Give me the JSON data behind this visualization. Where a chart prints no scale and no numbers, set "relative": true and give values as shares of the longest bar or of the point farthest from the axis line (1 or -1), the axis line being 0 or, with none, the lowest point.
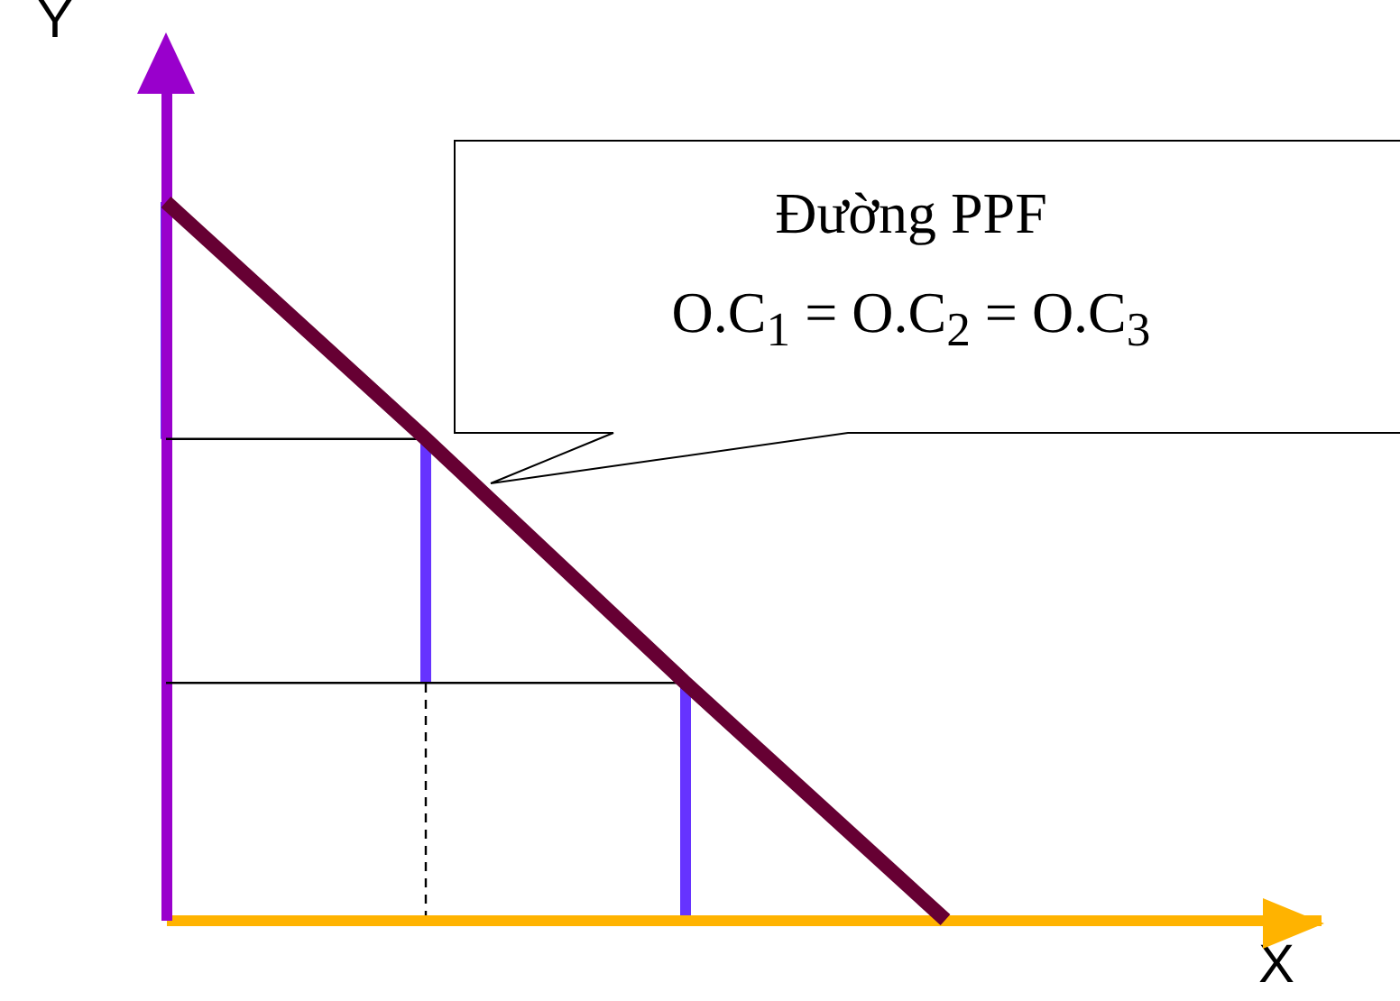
{
  "chart_data": {
    "type": "line",
    "relative": true,
    "xlabel": "X",
    "ylabel": "Y",
    "categories": [
      null,
      null,
      null,
      null
    ],
    "annotations": [
      "Đường PPF",
      "O.C$_{1}$ = O.C$_{2}$ = O.C$_{3}$"
    ],
    "series": [
      {
        "color": "#660033",
        "values": [
          1,
          0.67,
          0.33,
          0
        ]
      },
      {
        "color": "#000000",
        "values": [
          0.67,
          0.67,
          null,
          null
        ]
      },
      {
        "color": "#000000",
        "values": [
          0.33,
          0.33,
          0.33,
          null
        ]
      }
    ]
  }
}
